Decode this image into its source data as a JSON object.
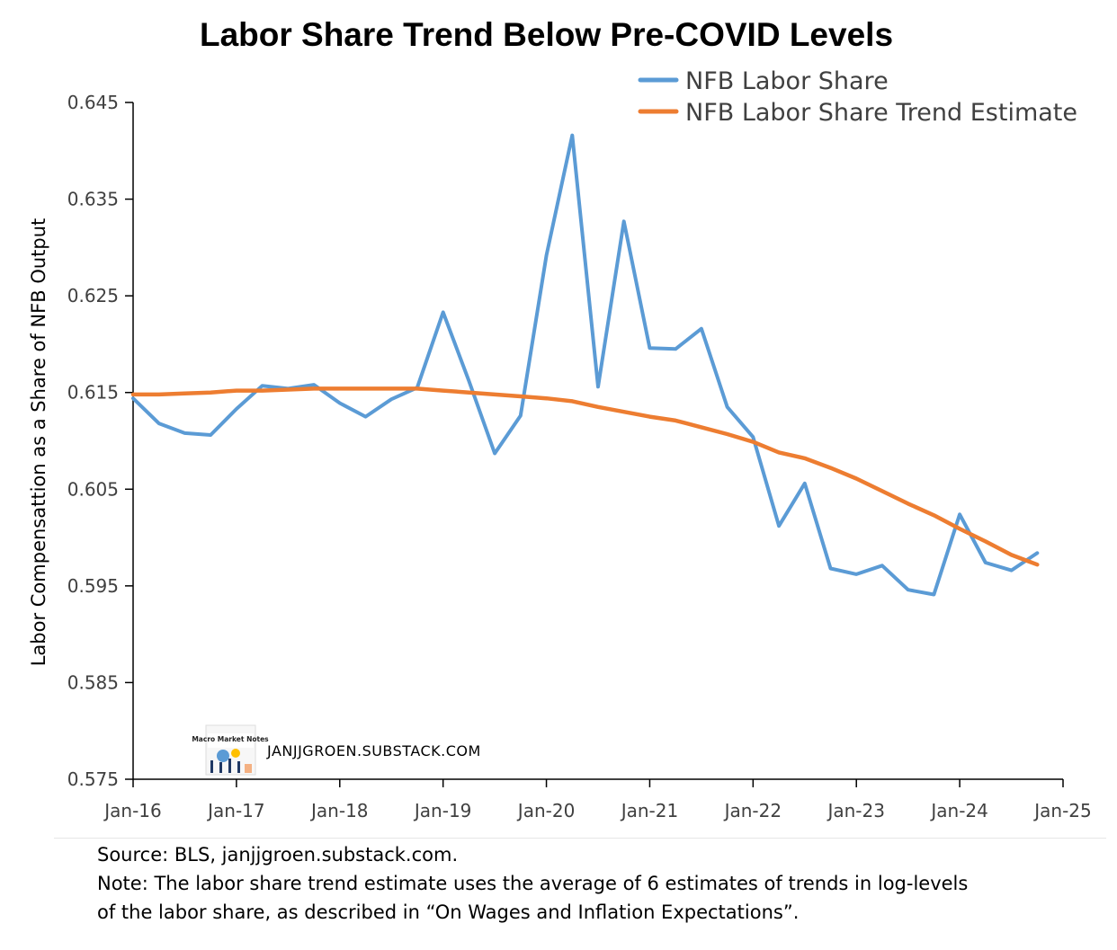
{
  "chart_data": {
    "type": "line",
    "title": "Labor Share Trend Below Pre-COVID Levels",
    "xlabel": "",
    "ylabel": "Labor Compensattion as a Share of NFB Output",
    "ylim": [
      0.575,
      0.645
    ],
    "yticks": [
      "0.575",
      "0.585",
      "0.595",
      "0.605",
      "0.615",
      "0.625",
      "0.635",
      "0.645"
    ],
    "xlim": [
      2016.0,
      2025.0
    ],
    "xticks": [
      "Jan-16",
      "Jan-17",
      "Jan-18",
      "Jan-19",
      "Jan-20",
      "Jan-21",
      "Jan-22",
      "Jan-23",
      "Jan-24",
      "Jan-25"
    ],
    "grid": false,
    "legend_position": "top-right",
    "series": [
      {
        "name": "NFB Labor Share",
        "color": "#5b9bd5",
        "x": [
          2016.0,
          2016.25,
          2016.5,
          2016.75,
          2017.0,
          2017.25,
          2017.5,
          2017.75,
          2018.0,
          2018.25,
          2018.5,
          2018.75,
          2019.0,
          2019.25,
          2019.5,
          2019.75,
          2020.0,
          2020.25,
          2020.5,
          2020.75,
          2021.0,
          2021.25,
          2021.5,
          2021.75,
          2022.0,
          2022.25,
          2022.5,
          2022.75,
          2023.0,
          2023.25,
          2023.5,
          2023.75,
          2024.0,
          2024.25,
          2024.5,
          2024.75
        ],
        "values": [
          0.6144,
          0.6118,
          0.6108,
          0.6106,
          0.6133,
          0.6157,
          0.6154,
          0.6158,
          0.6139,
          0.6125,
          0.6143,
          0.6155,
          0.6233,
          0.6162,
          0.6087,
          0.6126,
          0.6292,
          0.6416,
          0.6156,
          0.6327,
          0.6196,
          0.6195,
          0.6216,
          0.6135,
          0.6104,
          0.6012,
          0.6056,
          0.5968,
          0.5962,
          0.5971,
          0.5946,
          0.5941,
          0.6024,
          0.5974,
          0.5966,
          0.5984
        ]
      },
      {
        "name": "NFB Labor Share Trend Estimate",
        "color": "#ed7d31",
        "x": [
          2016.0,
          2016.25,
          2016.5,
          2016.75,
          2017.0,
          2017.25,
          2017.5,
          2017.75,
          2018.0,
          2018.25,
          2018.5,
          2018.75,
          2019.0,
          2019.25,
          2019.5,
          2019.75,
          2020.0,
          2020.25,
          2020.5,
          2020.75,
          2021.0,
          2021.25,
          2021.5,
          2021.75,
          2022.0,
          2022.25,
          2022.5,
          2022.75,
          2023.0,
          2023.25,
          2023.5,
          2023.75,
          2024.0,
          2024.25,
          2024.5,
          2024.75
        ],
        "values": [
          0.6148,
          0.6148,
          0.6149,
          0.615,
          0.6152,
          0.6152,
          0.6153,
          0.6154,
          0.6154,
          0.6154,
          0.6154,
          0.6154,
          0.6152,
          0.615,
          0.6148,
          0.6146,
          0.6144,
          0.6141,
          0.6135,
          0.613,
          0.6125,
          0.6121,
          0.6114,
          0.6107,
          0.6099,
          0.6088,
          0.6082,
          0.6072,
          0.6061,
          0.6048,
          0.6035,
          0.6023,
          0.6009,
          0.5996,
          0.5982,
          0.5972
        ]
      }
    ]
  },
  "watermark": {
    "logo_text": "Macro Market Notes",
    "site": "JANJJGROEN.SUBSTACK.COM"
  },
  "footer": {
    "source": "Source: BLS, janjjgroen.substack.com.",
    "note_line1": "Note: The labor share trend estimate uses the average of 6 estimates of trends in log-levels",
    "note_line2": "of the labor share, as described in “On Wages and Inflation Expectations”."
  }
}
